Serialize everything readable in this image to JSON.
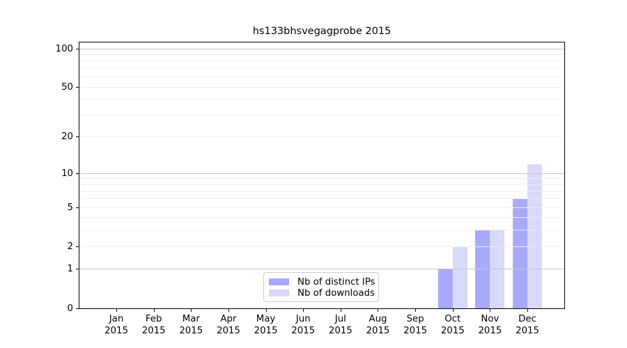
{
  "figure": {
    "background": "#ffffff"
  },
  "chart_data": {
    "type": "bar",
    "title": "hs133bhsvegagprobe 2015",
    "categories": [
      "Jan",
      "Feb",
      "Mar",
      "Apr",
      "May",
      "Jun",
      "Jul",
      "Aug",
      "Sep",
      "Oct",
      "Nov",
      "Dec"
    ],
    "category_year": "2015",
    "series": [
      {
        "name": "Nb of distinct IPs",
        "color": "#a9a9fb",
        "values": [
          0,
          0,
          0,
          0,
          0,
          0,
          0,
          0,
          0,
          1,
          3,
          6
        ]
      },
      {
        "name": "Nb of downloads",
        "color": "#d9d9fb",
        "values": [
          0,
          0,
          0,
          0,
          0,
          0,
          0,
          0,
          0,
          2,
          3,
          12
        ]
      }
    ],
    "xlabel": "",
    "ylabel": "",
    "yscale": "log1p",
    "ylim": [
      0,
      112
    ],
    "yticks": [
      0,
      1,
      2,
      5,
      10,
      20,
      50,
      100
    ],
    "grid": {
      "on": true,
      "major_values": [
        1,
        10,
        100
      ],
      "minor_values": [
        2,
        3,
        4,
        5,
        6,
        7,
        8,
        9,
        20,
        30,
        40,
        50,
        60,
        70,
        80,
        90
      ],
      "major_color": "#c5c5c5",
      "minor_color": "#eeeeee"
    },
    "legend": {
      "position": "lower center",
      "border_color": "#cccccc",
      "background": "#ffffff"
    }
  }
}
